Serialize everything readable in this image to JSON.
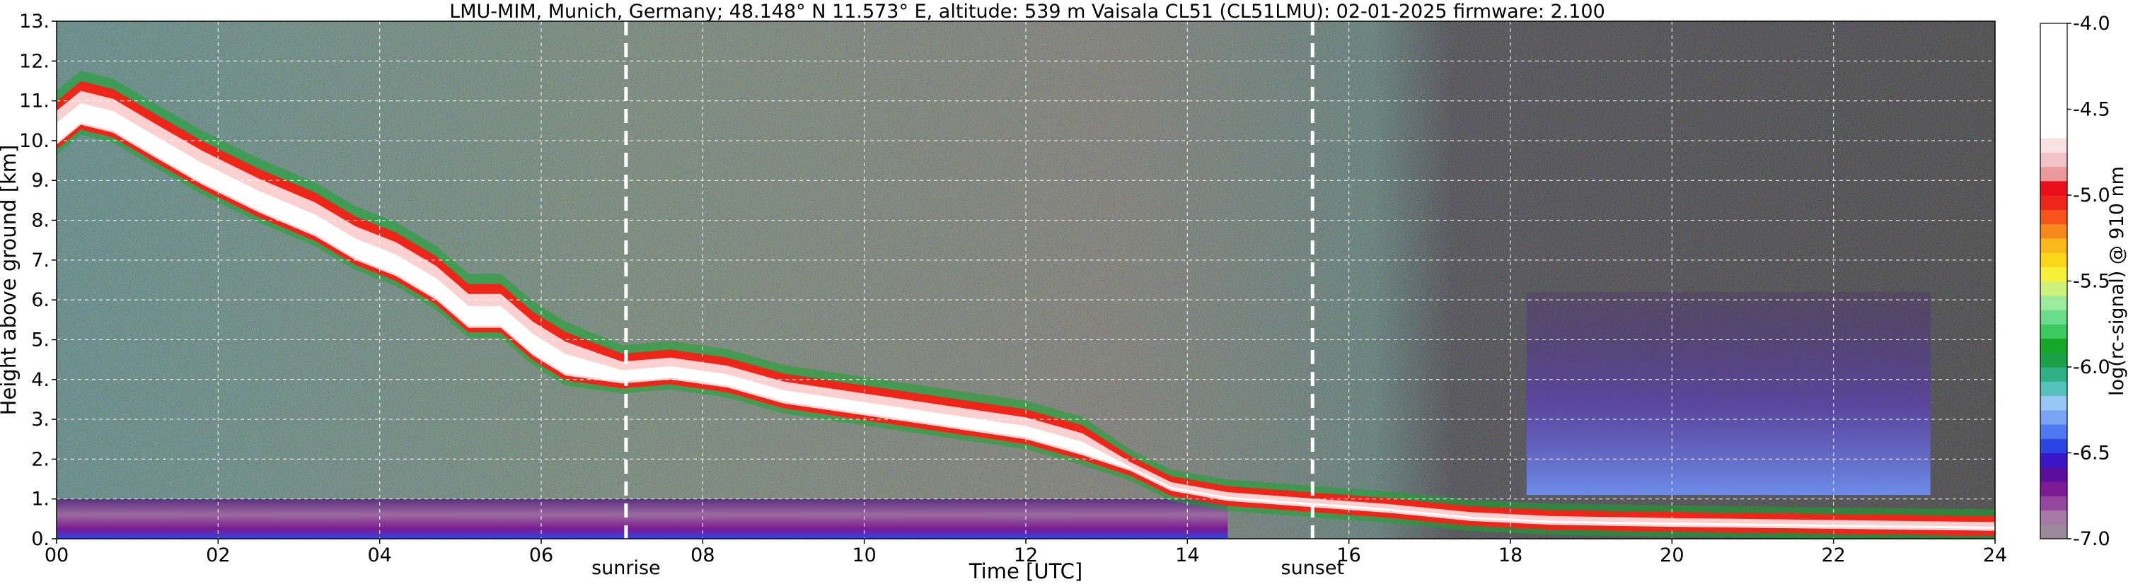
{
  "chart_data": {
    "type": "heatmap",
    "title": "LMU-MIM, Munich, Germany; 48.148° N 11.573° E, altitude: 539 m    Vaisala CL51 (CL51LMU): 02-01-2025    firmware: 2.100",
    "xlabel": "Time [UTC]",
    "ylabel": "Height above ground [km]",
    "xlim": [
      0,
      24
    ],
    "ylim": [
      0,
      13
    ],
    "x_ticks": [
      "00",
      "02",
      "04",
      "06",
      "08",
      "10",
      "12",
      "14",
      "16",
      "18",
      "20",
      "22",
      "24"
    ],
    "y_ticks": [
      "0.",
      "1.",
      "2.",
      "3.",
      "4.",
      "5.",
      "6.",
      "7.",
      "8.",
      "9.",
      "10.",
      "11.",
      "12.",
      "13."
    ],
    "grid": true,
    "colorbar": {
      "label": "log(rc-signal) @ 910 nm",
      "range": [
        -7.0,
        -4.0
      ],
      "ticks": [
        "-4.0",
        "-4.5",
        "-5.0",
        "-5.5",
        "-6.0",
        "-6.5",
        "-7.0"
      ],
      "colors": [
        "#9b8a9b",
        "#a57aa5",
        "#95479e",
        "#7b1a93",
        "#5b0e9b",
        "#3a16c6",
        "#2c46e6",
        "#4f79ee",
        "#79a3f5",
        "#98c6f7",
        "#55c3bc",
        "#2fb085",
        "#1aa046",
        "#14a72a",
        "#3dc95f",
        "#6bdc8c",
        "#9cea9c",
        "#cff27c",
        "#f7f13a",
        "#fbd71c",
        "#fbb81a",
        "#f7891a",
        "#f5551a",
        "#ee2519",
        "#e80e1a",
        "#ec9a9e",
        "#f2c3c6",
        "#f7e1e1",
        "#ffffff",
        "#ffffff",
        "#ffffff",
        "#ffffff",
        "#ffffff",
        "#ffffff",
        "#ffffff",
        "#ffffff"
      ]
    },
    "cloud_base_km": [
      {
        "t": 0.0,
        "h": 9.9
      },
      {
        "t": 0.3,
        "h": 10.4
      },
      {
        "t": 0.7,
        "h": 10.2
      },
      {
        "t": 1.2,
        "h": 9.6
      },
      {
        "t": 1.8,
        "h": 8.9
      },
      {
        "t": 2.5,
        "h": 8.2
      },
      {
        "t": 3.2,
        "h": 7.6
      },
      {
        "t": 3.7,
        "h": 7.0
      },
      {
        "t": 4.2,
        "h": 6.6
      },
      {
        "t": 4.7,
        "h": 6.0
      },
      {
        "t": 5.1,
        "h": 5.3
      },
      {
        "t": 5.5,
        "h": 5.3
      },
      {
        "t": 5.9,
        "h": 4.6
      },
      {
        "t": 6.3,
        "h": 4.1
      },
      {
        "t": 7.0,
        "h": 3.9
      },
      {
        "t": 7.6,
        "h": 4.0
      },
      {
        "t": 8.3,
        "h": 3.8
      },
      {
        "t": 9.0,
        "h": 3.4
      },
      {
        "t": 10.0,
        "h": 3.1
      },
      {
        "t": 11.0,
        "h": 2.8
      },
      {
        "t": 12.0,
        "h": 2.5
      },
      {
        "t": 12.7,
        "h": 2.1
      },
      {
        "t": 13.3,
        "h": 1.7
      },
      {
        "t": 13.8,
        "h": 1.2
      },
      {
        "t": 14.5,
        "h": 0.95
      },
      {
        "t": 15.5,
        "h": 0.8
      },
      {
        "t": 16.5,
        "h": 0.65
      },
      {
        "t": 17.5,
        "h": 0.45
      },
      {
        "t": 18.5,
        "h": 0.35
      },
      {
        "t": 20.0,
        "h": 0.3
      },
      {
        "t": 22.0,
        "h": 0.25
      },
      {
        "t": 24.0,
        "h": 0.2
      }
    ],
    "annotations": [
      {
        "label": "sunrise",
        "t": 7.05
      },
      {
        "label": "sunset",
        "t": 15.55
      }
    ]
  }
}
